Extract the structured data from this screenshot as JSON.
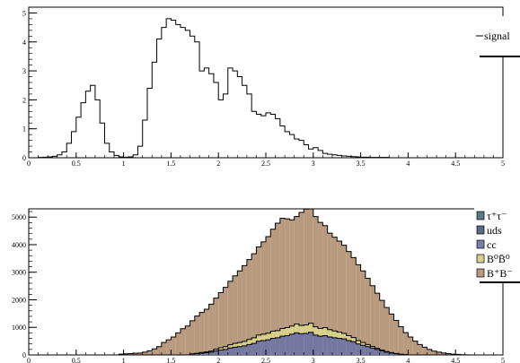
{
  "chart_data": [
    {
      "type": "histogram",
      "title": "",
      "xlabel": "",
      "ylabel": "",
      "xlim": [
        0,
        5
      ],
      "ylim": [
        0,
        5.2
      ],
      "xticks": [
        "0",
        "0.5",
        "1",
        "1.5",
        "2",
        "2.5",
        "3",
        "3.5",
        "4",
        "4.5",
        "5"
      ],
      "yticks": [
        "0",
        "1",
        "2",
        "3",
        "4",
        "5"
      ],
      "bin_width": 0.05,
      "legend": {
        "placement": "top-right",
        "entries": [
          {
            "label": "signal",
            "style": "line"
          }
        ]
      },
      "series": [
        {
          "name": "signal",
          "color": "#000000",
          "values": [
            0,
            0,
            0.01,
            0.02,
            0.03,
            0.05,
            0.1,
            0.2,
            0.5,
            0.9,
            1.4,
            1.9,
            2.3,
            2.5,
            2.0,
            1.2,
            0.5,
            0.2,
            0.08,
            0.03,
            0.02,
            0.03,
            0.1,
            0.4,
            1.3,
            2.4,
            3.3,
            4.1,
            4.5,
            4.8,
            4.75,
            4.6,
            4.5,
            4.4,
            4.2,
            4.0,
            3.0,
            3.1,
            2.9,
            2.6,
            2.0,
            2.2,
            3.1,
            3.0,
            2.8,
            2.5,
            2.2,
            1.6,
            1.5,
            1.45,
            1.55,
            1.5,
            1.35,
            1.1,
            0.9,
            0.8,
            0.65,
            0.6,
            0.45,
            0.3,
            0.35,
            0.25,
            0.15,
            0.12,
            0.1,
            0.08,
            0.06,
            0.05,
            0.04,
            0.03,
            0.02,
            0.02,
            0.01,
            0.01,
            0.01,
            0.01,
            0,
            0,
            0,
            0,
            0,
            0,
            0,
            0,
            0,
            0,
            0,
            0,
            0,
            0,
            0,
            0,
            0,
            0,
            0,
            0,
            0,
            0,
            0,
            0
          ]
        }
      ]
    },
    {
      "type": "stacked-histogram",
      "title": "",
      "xlabel": "",
      "ylabel": "",
      "xlim": [
        0,
        5
      ],
      "ylim": [
        0,
        5300
      ],
      "xticks": [
        "0",
        "0.5",
        "1",
        "1.5",
        "2",
        "2.5",
        "3",
        "3.5",
        "4",
        "4.5",
        "5"
      ],
      "yticks": [
        "0",
        "1000",
        "2000",
        "3000",
        "4000",
        "5000"
      ],
      "bin_width": 0.05,
      "legend": {
        "placement": "right",
        "entries": [
          {
            "label": "τ⁺τ⁻",
            "color": "#5d7b86"
          },
          {
            "label": "uds",
            "color": "#5a6a80"
          },
          {
            "label": "cc",
            "color": "#7c7ea8"
          },
          {
            "label": "B⁰B̄⁰",
            "color": "#d8cf88"
          },
          {
            "label": "B⁺B⁻",
            "color": "#b89a7e"
          }
        ]
      },
      "series": [
        {
          "name": "uds/cc",
          "color": "#7478a0",
          "values": [
            0,
            0,
            0,
            0,
            0,
            0,
            0,
            0,
            0,
            0,
            0,
            0,
            0,
            0,
            0,
            0,
            0,
            0,
            0,
            0,
            0,
            0,
            0,
            0,
            0,
            0,
            0,
            0,
            0,
            0,
            0,
            0,
            0,
            0,
            30,
            40,
            60,
            80,
            100,
            150,
            180,
            200,
            250,
            280,
            300,
            330,
            380,
            420,
            500,
            520,
            550,
            600,
            620,
            680,
            700,
            750,
            800,
            770,
            780,
            820,
            720,
            680,
            700,
            650,
            620,
            600,
            580,
            520,
            480,
            400,
            350,
            300,
            250,
            200,
            150,
            100,
            70,
            40,
            20,
            10,
            0,
            0,
            0,
            0,
            0,
            0,
            0,
            0,
            0,
            0,
            0,
            0,
            0,
            0,
            0,
            0,
            0,
            0,
            0,
            0
          ]
        },
        {
          "name": "B⁰B̄⁰",
          "color": "#d8cf88",
          "values": [
            0,
            0,
            0,
            0,
            0,
            0,
            0,
            0,
            0,
            0,
            0,
            0,
            0,
            0,
            0,
            0,
            0,
            0,
            0,
            0,
            0,
            0,
            0,
            0,
            0,
            0,
            0,
            0,
            0,
            0,
            0,
            0,
            0,
            0,
            10,
            20,
            30,
            30,
            40,
            60,
            80,
            100,
            120,
            140,
            150,
            160,
            180,
            200,
            220,
            230,
            240,
            260,
            260,
            280,
            290,
            300,
            320,
            300,
            310,
            330,
            300,
            280,
            290,
            270,
            250,
            230,
            200,
            180,
            150,
            120,
            100,
            80,
            60,
            40,
            30,
            20,
            15,
            10,
            5,
            0,
            0,
            0,
            0,
            0,
            0,
            0,
            0,
            0,
            0,
            0,
            0,
            0,
            0,
            0,
            0,
            0,
            0,
            0,
            0,
            0
          ]
        },
        {
          "name": "B⁺B⁻",
          "color": "#b89a7e",
          "values": [
            0,
            0,
            0,
            0,
            0,
            0,
            0,
            0,
            0,
            0,
            0,
            0,
            0,
            0,
            0,
            0,
            0,
            0,
            0,
            30,
            40,
            50,
            60,
            70,
            100,
            150,
            220,
            300,
            450,
            550,
            650,
            800,
            950,
            1050,
            1200,
            1350,
            1450,
            1550,
            1700,
            1850,
            2000,
            2150,
            2300,
            2450,
            2600,
            2750,
            2900,
            3050,
            3200,
            3350,
            3500,
            3700,
            3900,
            4000,
            3950,
            3850,
            3900,
            4100,
            4200,
            4150,
            4000,
            3850,
            3700,
            3500,
            3400,
            3300,
            3200,
            3050,
            2900,
            2750,
            2600,
            2400,
            2200,
            2000,
            1800,
            1600,
            1400,
            1200,
            1000,
            800,
            650,
            500,
            380,
            280,
            200,
            140,
            100,
            70,
            50,
            30,
            20,
            10,
            5,
            0,
            0,
            0,
            0,
            0,
            0,
            0
          ]
        }
      ]
    }
  ]
}
